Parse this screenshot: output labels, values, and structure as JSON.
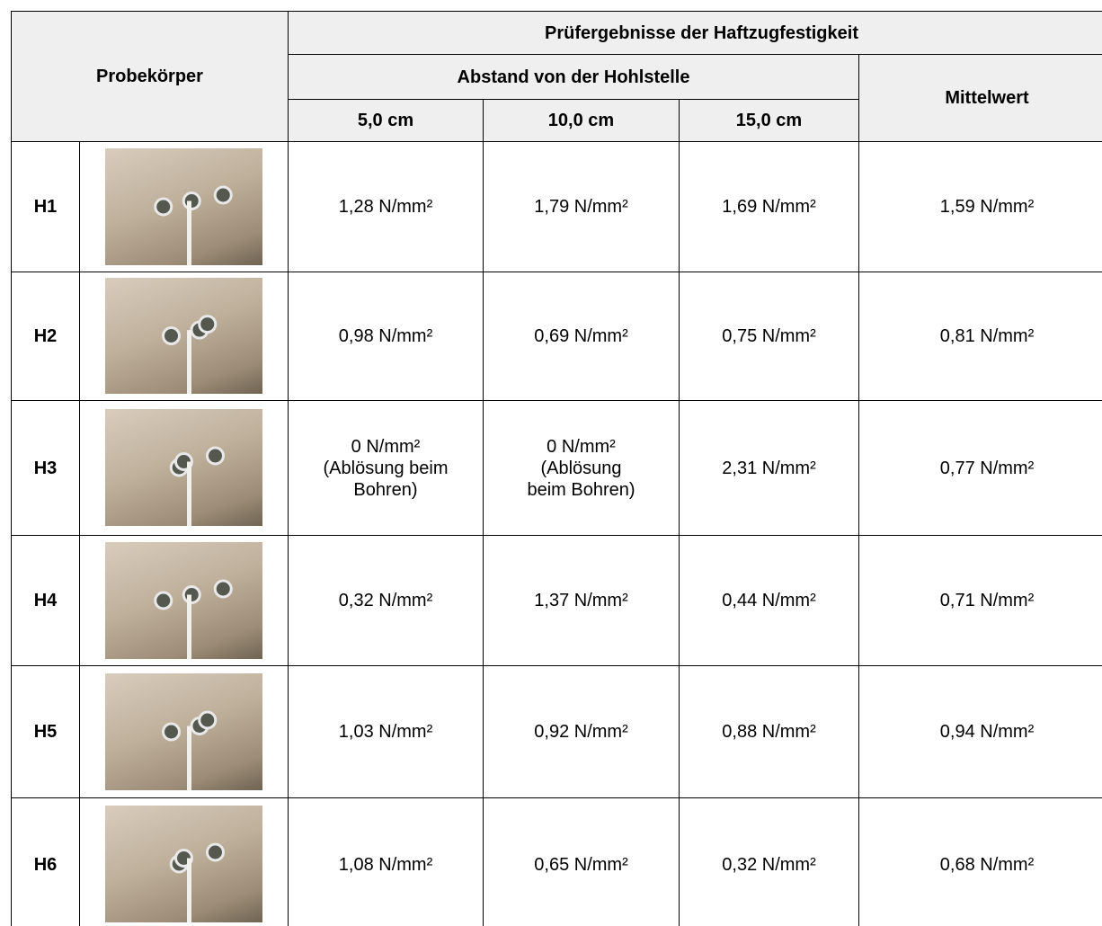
{
  "header": {
    "title": "Probekörper",
    "group": "Prüfergebnisse der Haftzugfestigkeit",
    "subgroup": "Abstand von der Hohlstelle",
    "columns": [
      "5,0 cm",
      "10,0 cm",
      "15,0 cm"
    ],
    "mean": "Mittelwert"
  },
  "rows": [
    {
      "label": "H1",
      "values": [
        [
          "1,28 N/mm²"
        ],
        [
          "1,79 N/mm²"
        ],
        [
          "1,69 N/mm²"
        ]
      ],
      "mean": "1,59 N/mm²"
    },
    {
      "label": "H2",
      "values": [
        [
          "0,98 N/mm²"
        ],
        [
          "0,69 N/mm²"
        ],
        [
          "0,75 N/mm²"
        ]
      ],
      "mean": "0,81 N/mm²"
    },
    {
      "label": "H3",
      "values": [
        [
          "0 N/mm²",
          "(Ablösung beim",
          "Bohren)"
        ],
        [
          "0 N/mm²",
          "(Ablösung",
          "beim Bohren)"
        ],
        [
          "2,31 N/mm²"
        ]
      ],
      "mean": "0,77 N/mm²"
    },
    {
      "label": "H4",
      "values": [
        [
          "0,32 N/mm²"
        ],
        [
          "1,37 N/mm²"
        ],
        [
          "0,44 N/mm²"
        ]
      ],
      "mean": "0,71 N/mm²"
    },
    {
      "label": "H5",
      "values": [
        [
          "1,03 N/mm²"
        ],
        [
          "0,92 N/mm²"
        ],
        [
          "0,88 N/mm²"
        ]
      ],
      "mean": "0,94 N/mm²"
    },
    {
      "label": "H6",
      "values": [
        [
          "1,08 N/mm²"
        ],
        [
          "0,65 N/mm²"
        ],
        [
          "0,32 N/mm²"
        ]
      ],
      "mean": "0,68 N/mm²"
    }
  ]
}
